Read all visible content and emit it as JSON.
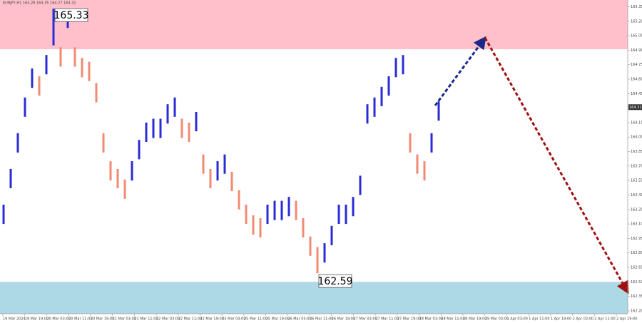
{
  "chart_data": {
    "type": "range",
    "title": "EURJPY,H1 164.28 164.35 164.27 164.31",
    "up_color": "#2b2bd6",
    "down_color": "#f08a72",
    "ylim": [
      162.17,
      165.42
    ],
    "yticks": [
      165.35,
      {
        "value": 165.2,
        "label": "165.20"
      },
      165.05,
      {
        "value": 164.9,
        "label": "164.90"
      },
      164.75,
      {
        "value": 164.6,
        "label": "164.60"
      },
      164.45,
      {
        "value": 164.3,
        "label": "164.30"
      },
      164.15,
      {
        "value": 164.0,
        "label": "164.00"
      },
      163.85,
      {
        "value": 163.7,
        "label": "163.70"
      },
      163.55,
      {
        "value": 163.4,
        "label": "163.40"
      },
      163.25,
      {
        "value": 163.1,
        "label": "163.10"
      },
      162.95,
      {
        "value": 162.8,
        "label": "162.80"
      },
      162.65,
      {
        "value": 162.5,
        "label": "162.50"
      },
      162.35,
      {
        "value": 162.2,
        "label": "162.20"
      }
    ],
    "xlabels": [
      "19 Mar 2024",
      "19 Mar 19:00",
      "20 Mar 03:00",
      "20 Mar 11:00",
      "20 Mar 19:00",
      "21 Mar 03:00",
      "21 Mar 11:00",
      "22 Mar 03:00",
      "22 Mar 11:00",
      "22 Mar 19:00",
      "25 Mar 03:00",
      "25 Mar 11:00",
      "25 Mar 19:00",
      "26 Mar 03:00",
      "26 Mar 11:00",
      "26 Mar 19:00",
      "27 Mar 03:00",
      "27 Mar 11:00",
      "27 Mar 19:00",
      "28 Mar 03:00",
      "28 Mar 11:00",
      "28 Mar 19:00",
      "29 Mar 03:00",
      "1 Apr 03:00",
      "1 Apr 11:00",
      "1 Apr 19:00",
      "2 Apr 03:00",
      "2 Apr 11:00",
      "2 Apr 19:00"
    ],
    "high": [
      163.3,
      163.67,
      164.04,
      164.41,
      164.71,
      164.63,
      164.85,
      165.33,
      164.93,
      165.33,
      164.93,
      164.82,
      164.78,
      164.56,
      164.04,
      163.75,
      163.67,
      163.56,
      163.75,
      163.97,
      164.15,
      164.19,
      164.19,
      164.34,
      164.41,
      164.19,
      164.15,
      164.26,
      163.82,
      163.67,
      163.75,
      163.82,
      163.64,
      163.45,
      163.3,
      163.19,
      163.16,
      163.3,
      163.34,
      163.34,
      163.38,
      163.34,
      163.16,
      162.97,
      162.86,
      162.9,
      163.08,
      163.3,
      163.3,
      163.38,
      163.6,
      164.34,
      164.41,
      164.52,
      164.63,
      164.82,
      164.85,
      164.04,
      163.82,
      163.75,
      164.04,
      164.37
    ],
    "low": [
      163.1,
      163.47,
      163.84,
      164.21,
      164.51,
      164.43,
      164.65,
      164.95,
      164.73,
      165.13,
      164.73,
      164.62,
      164.58,
      164.36,
      163.84,
      163.55,
      163.47,
      163.36,
      163.55,
      163.77,
      163.95,
      163.99,
      163.99,
      164.14,
      164.21,
      163.99,
      163.95,
      164.06,
      163.62,
      163.47,
      163.55,
      163.62,
      163.44,
      163.25,
      163.1,
      162.99,
      162.96,
      163.1,
      163.14,
      163.14,
      163.18,
      163.14,
      162.96,
      162.77,
      162.59,
      162.7,
      162.88,
      163.1,
      163.1,
      163.18,
      163.4,
      164.14,
      164.21,
      164.32,
      164.43,
      164.62,
      164.65,
      163.84,
      163.62,
      163.55,
      163.84,
      164.17
    ],
    "annotations": [
      {
        "text": "165.33",
        "value": 165.33
      },
      {
        "text": "162.59",
        "value": 162.59
      }
    ],
    "current_price": {
      "value": 164.31,
      "label": "164.31"
    },
    "zones": [
      {
        "from": 164.91,
        "to": 165.42,
        "color": "#ffc0cb"
      },
      {
        "from": 162.17,
        "to": 162.5,
        "color": "#add8e6"
      }
    ]
  }
}
